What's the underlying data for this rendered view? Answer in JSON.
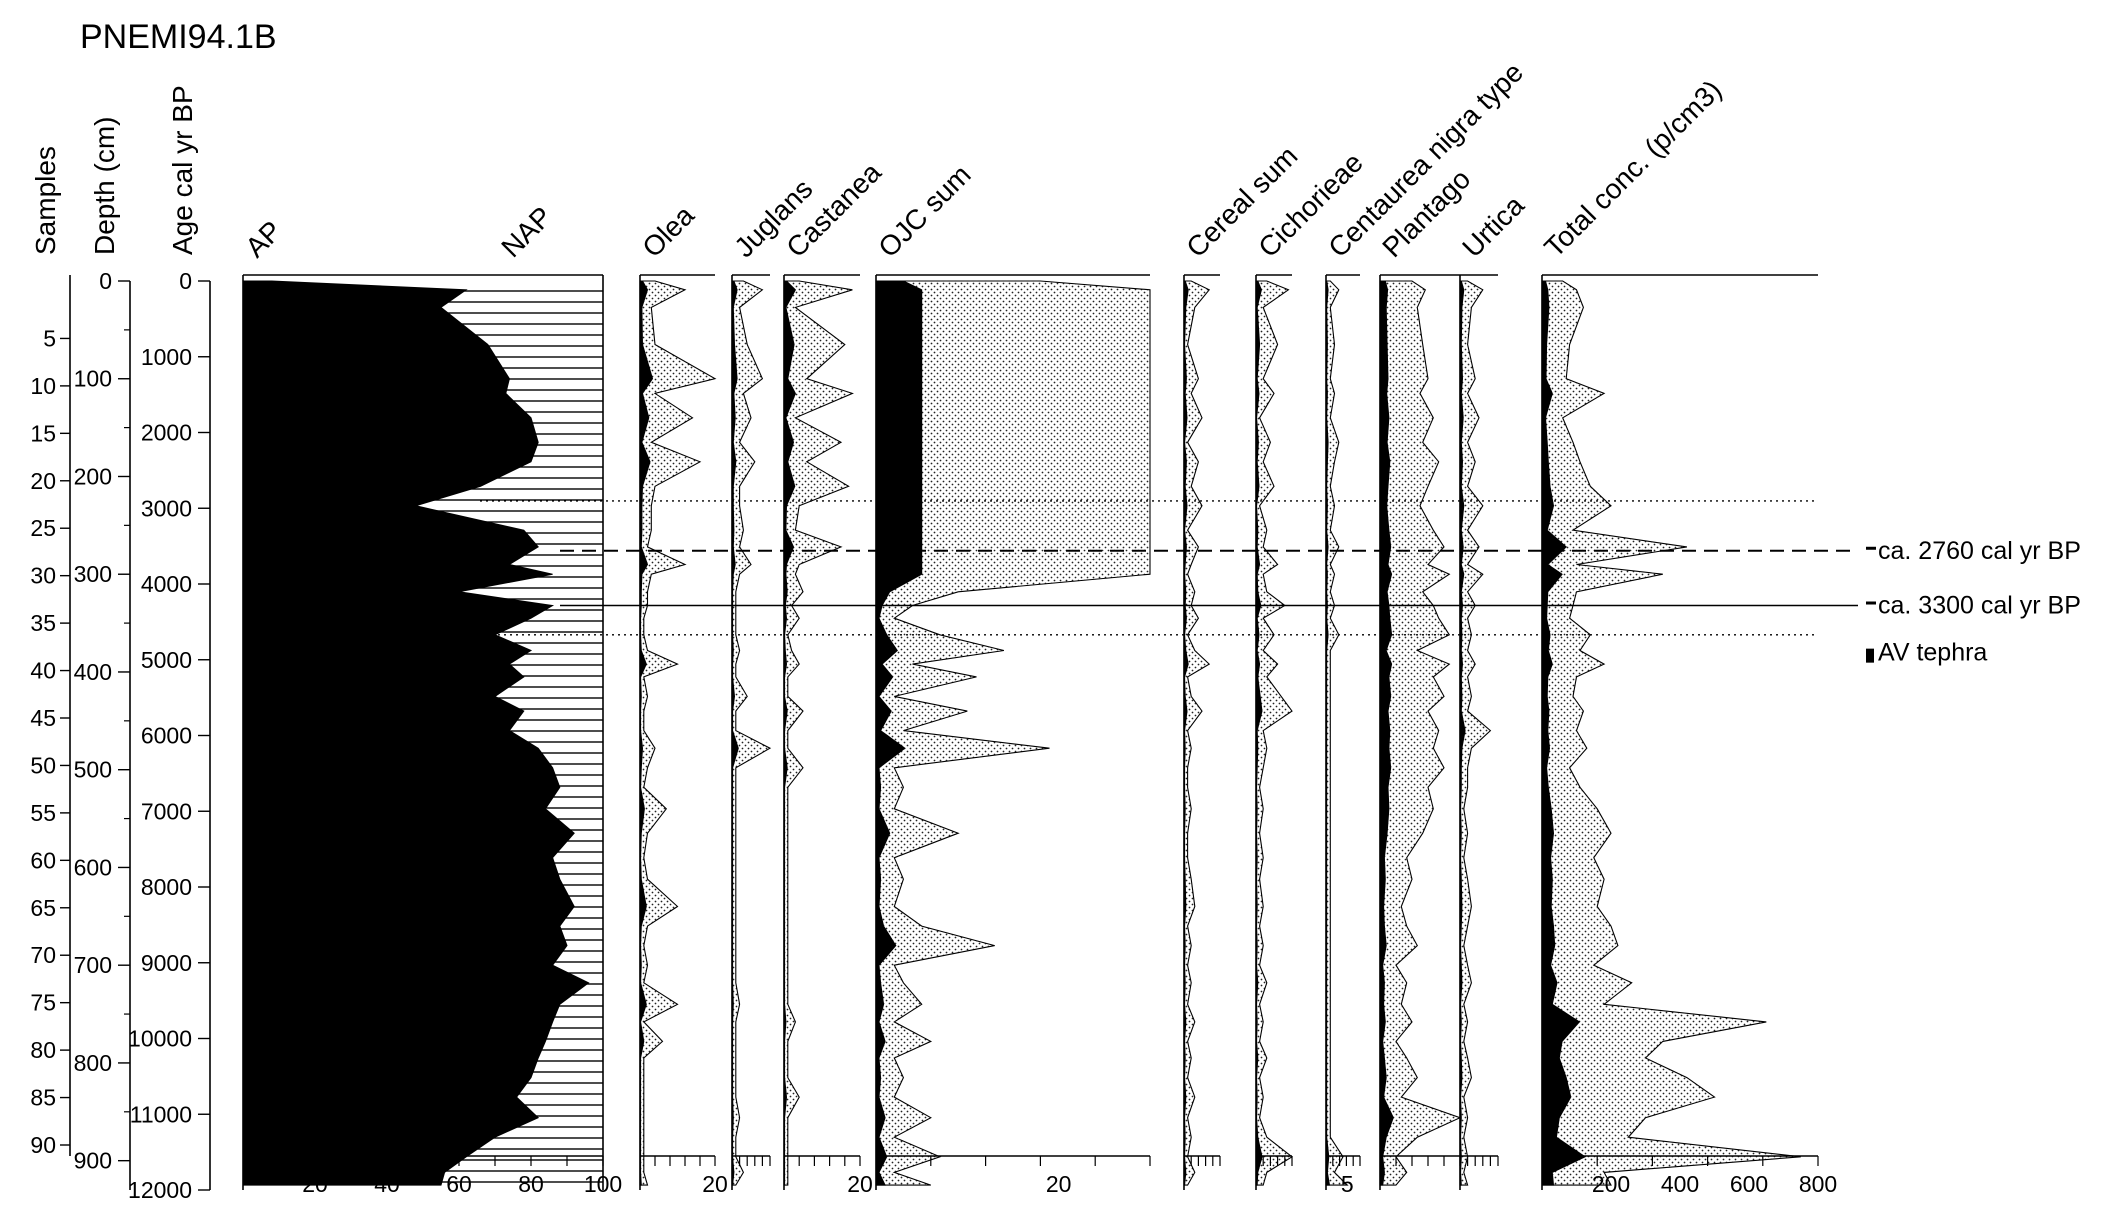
{
  "chart_data": {
    "type": "area",
    "title": "PNEMI94.1B",
    "y_axes": {
      "samples": {
        "label": "Samples",
        "ticks": [
          5,
          10,
          15,
          20,
          25,
          30,
          35,
          40,
          45,
          50,
          55,
          60,
          65,
          70,
          75,
          80,
          85,
          90
        ]
      },
      "depth": {
        "label": "Depth (cm)",
        "ticks": [
          0,
          100,
          200,
          300,
          400,
          500,
          600,
          700,
          800,
          900
        ],
        "range": [
          0,
          930
        ]
      },
      "age": {
        "label": "Age cal yr BP",
        "ticks": [
          0,
          1000,
          2000,
          3000,
          4000,
          5000,
          6000,
          7000,
          8000,
          9000,
          10000,
          11000,
          12000
        ],
        "range": [
          0,
          12000
        ]
      }
    },
    "sample_depths": [
      0,
      9,
      27,
      65,
      100,
      115,
      140,
      165,
      185,
      210,
      230,
      255,
      272,
      290,
      300,
      318,
      332,
      345,
      362,
      378,
      392,
      405,
      425,
      440,
      460,
      478,
      498,
      518,
      540,
      565,
      590,
      612,
      640,
      660,
      680,
      700,
      718,
      740,
      758,
      778,
      795,
      815,
      835,
      856,
      876,
      896,
      912,
      925
    ],
    "panels": [
      {
        "name": "AP",
        "name2": "NAP",
        "axis_max": 100,
        "axis_ticks": [
          20,
          40,
          60,
          80,
          100
        ],
        "ap": [
          8,
          62,
          55,
          68,
          74,
          73,
          80,
          82,
          80,
          66,
          48,
          78,
          82,
          74,
          86,
          60,
          86,
          80,
          70,
          80,
          74,
          78,
          70,
          78,
          74,
          82,
          86,
          88,
          84,
          92,
          86,
          88,
          92,
          88,
          90,
          86,
          96,
          88,
          86,
          84,
          82,
          80,
          76,
          82,
          70,
          62,
          56,
          55
        ]
      },
      {
        "name": "Olea",
        "axis_max": 20,
        "axis_ticks": [
          20
        ],
        "values": [
          4,
          12,
          3,
          4,
          20,
          4,
          14,
          3,
          16,
          4,
          3,
          3,
          2,
          12,
          3,
          2,
          2,
          1,
          1,
          2,
          10,
          1,
          2,
          1,
          1,
          4,
          2,
          1,
          7,
          2,
          1,
          2,
          10,
          2,
          1,
          2,
          1,
          10,
          1,
          6,
          1,
          1,
          1,
          1,
          1,
          1,
          1,
          2
        ]
      },
      {
        "name": "Juglans",
        "axis_max": 10,
        "axis_ticks": [],
        "values": [
          3,
          8,
          2,
          4,
          8,
          3,
          5,
          2,
          6,
          2,
          2,
          3,
          2,
          5,
          2,
          1,
          1,
          1,
          1,
          2,
          1,
          1,
          4,
          1,
          1,
          10,
          1,
          1,
          1,
          1,
          1,
          1,
          1,
          1,
          1,
          1,
          1,
          2,
          1,
          1,
          1,
          1,
          1,
          2,
          1,
          1,
          3,
          1
        ]
      },
      {
        "name": "Castanea",
        "axis_max": 20,
        "axis_ticks": [
          20
        ],
        "values": [
          4,
          18,
          3,
          16,
          6,
          18,
          3,
          15,
          6,
          17,
          4,
          3,
          15,
          4,
          3,
          5,
          2,
          4,
          1,
          2,
          4,
          1,
          1,
          5,
          1,
          1,
          5,
          1,
          1,
          1,
          1,
          1,
          1,
          1,
          1,
          1,
          1,
          1,
          3,
          1,
          1,
          1,
          4,
          1,
          1,
          1,
          1,
          1
        ]
      },
      {
        "name": "OJC sum",
        "axis_max": 30,
        "axis_ticks": [
          20
        ],
        "values": [
          18,
          30,
          30,
          30,
          30,
          30,
          30,
          30,
          30,
          30,
          30,
          30,
          30,
          30,
          30,
          9,
          4,
          2,
          7,
          14,
          4,
          11,
          2,
          10,
          3,
          19,
          2,
          3,
          2,
          9,
          2,
          3,
          2,
          5,
          13,
          2,
          3,
          5,
          2,
          6,
          2,
          3,
          2,
          6,
          2,
          7,
          2,
          6
        ]
      },
      {
        "name": "Cereal sum",
        "axis_max": 10,
        "axis_ticks": [],
        "values": [
          2,
          7,
          3,
          1,
          4,
          2,
          5,
          1,
          4,
          2,
          5,
          1,
          4,
          2,
          1,
          3,
          2,
          4,
          1,
          3,
          7,
          1,
          2,
          5,
          1,
          2,
          1,
          1,
          2,
          1,
          1,
          2,
          3,
          1,
          2,
          1,
          2,
          1,
          3,
          1,
          2,
          1,
          3,
          1,
          2,
          1,
          3,
          1
        ]
      },
      {
        "name": "Cichorieae",
        "axis_max": 10,
        "axis_ticks": [],
        "values": [
          3,
          9,
          2,
          6,
          2,
          5,
          1,
          4,
          2,
          5,
          1,
          3,
          2,
          6,
          2,
          3,
          8,
          2,
          5,
          2,
          6,
          3,
          7,
          10,
          2,
          3,
          2,
          1,
          2,
          1,
          2,
          1,
          2,
          1,
          2,
          1,
          3,
          1,
          2,
          1,
          3,
          1,
          2,
          1,
          3,
          10,
          3,
          2
        ]
      },
      {
        "name": "Centaurea nigra type",
        "axis_max": 8,
        "axis_ticks": [
          5
        ],
        "values": [
          1,
          3,
          1,
          2,
          1,
          2,
          1,
          3,
          2,
          1,
          2,
          1,
          3,
          1,
          2,
          1,
          2,
          1,
          3,
          1,
          1,
          1,
          1,
          1,
          1,
          1,
          1,
          1,
          1,
          1,
          1,
          1,
          1,
          1,
          1,
          1,
          1,
          1,
          1,
          1,
          1,
          1,
          1,
          1,
          1,
          4,
          2,
          5
        ]
      },
      {
        "name": "Plantago",
        "axis_max": 30,
        "axis_ticks": [],
        "values": [
          12,
          17,
          14,
          16,
          18,
          15,
          20,
          16,
          22,
          18,
          15,
          20,
          24,
          18,
          26,
          16,
          20,
          22,
          26,
          14,
          26,
          20,
          24,
          18,
          22,
          20,
          24,
          18,
          20,
          16,
          10,
          12,
          8,
          10,
          14,
          6,
          10,
          8,
          12,
          6,
          10,
          14,
          8,
          30,
          14,
          6,
          10,
          6
        ]
      },
      {
        "name": "Urtica",
        "axis_max": 10,
        "axis_ticks": [],
        "values": [
          2,
          6,
          3,
          2,
          4,
          2,
          5,
          2,
          4,
          2,
          6,
          2,
          5,
          2,
          6,
          2,
          4,
          2,
          3,
          2,
          4,
          2,
          3,
          2,
          8,
          3,
          2,
          2,
          1,
          2,
          1,
          2,
          3,
          2,
          1,
          2,
          3,
          1,
          2,
          1,
          2,
          3,
          1,
          2,
          1,
          2,
          1,
          2
        ]
      },
      {
        "name": "Total conc. (p/cm3)",
        "axis_max": 800,
        "axis_ticks": [
          200,
          400,
          600,
          800
        ],
        "values": [
          60,
          100,
          120,
          80,
          70,
          180,
          60,
          90,
          110,
          140,
          200,
          90,
          420,
          100,
          350,
          100,
          90,
          80,
          140,
          110,
          180,
          100,
          90,
          120,
          100,
          130,
          80,
          110,
          160,
          200,
          150,
          180,
          160,
          200,
          220,
          150,
          260,
          180,
          650,
          350,
          300,
          420,
          500,
          300,
          250,
          750,
          180,
          200
        ]
      }
    ],
    "markers": [
      {
        "label": "ca. 2760 cal yr BP",
        "depth": 276,
        "style": "dashed"
      },
      {
        "label": "ca. 3300 cal yr BP",
        "depth": 332,
        "style": "solid"
      },
      {
        "label": "AV tephra",
        "depth": 370,
        "style": "legend"
      }
    ],
    "dotted_lines": [
      225,
      362
    ]
  }
}
